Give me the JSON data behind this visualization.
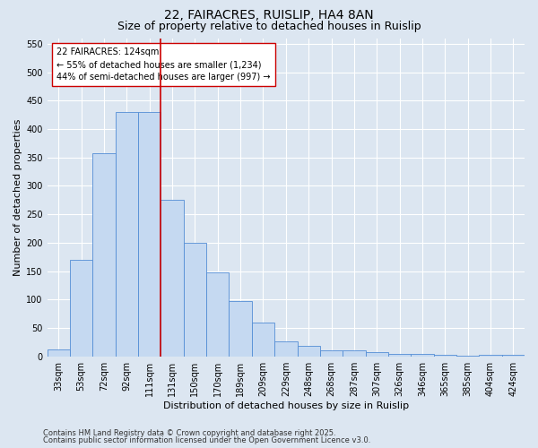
{
  "title1": "22, FAIRACRES, RUISLIP, HA4 8AN",
  "title2": "Size of property relative to detached houses in Ruislip",
  "xlabel": "Distribution of detached houses by size in Ruislip",
  "ylabel": "Number of detached properties",
  "categories": [
    "33sqm",
    "53sqm",
    "72sqm",
    "92sqm",
    "111sqm",
    "131sqm",
    "150sqm",
    "170sqm",
    "189sqm",
    "209sqm",
    "229sqm",
    "248sqm",
    "268sqm",
    "287sqm",
    "307sqm",
    "326sqm",
    "346sqm",
    "365sqm",
    "385sqm",
    "404sqm",
    "424sqm"
  ],
  "values": [
    12,
    170,
    357,
    430,
    430,
    275,
    200,
    148,
    98,
    60,
    26,
    19,
    11,
    11,
    7,
    5,
    4,
    2,
    1,
    2,
    2
  ],
  "bar_color": "#c5d9f1",
  "bar_edge_color": "#538dd5",
  "background_color": "#dce6f1",
  "vline_x_index": 4.5,
  "vline_color": "#cc0000",
  "annotation_text": "22 FAIRACRES: 124sqm\n← 55% of detached houses are smaller (1,234)\n44% of semi-detached houses are larger (997) →",
  "annotation_box_color": "#ffffff",
  "annotation_box_edge": "#cc0000",
  "ylim": [
    0,
    560
  ],
  "yticks": [
    0,
    50,
    100,
    150,
    200,
    250,
    300,
    350,
    400,
    450,
    500,
    550
  ],
  "footer1": "Contains HM Land Registry data © Crown copyright and database right 2025.",
  "footer2": "Contains public sector information licensed under the Open Government Licence v3.0.",
  "title1_fontsize": 10,
  "title2_fontsize": 9,
  "axis_label_fontsize": 8,
  "tick_fontsize": 7,
  "footer_fontsize": 6,
  "annotation_fontsize": 7
}
